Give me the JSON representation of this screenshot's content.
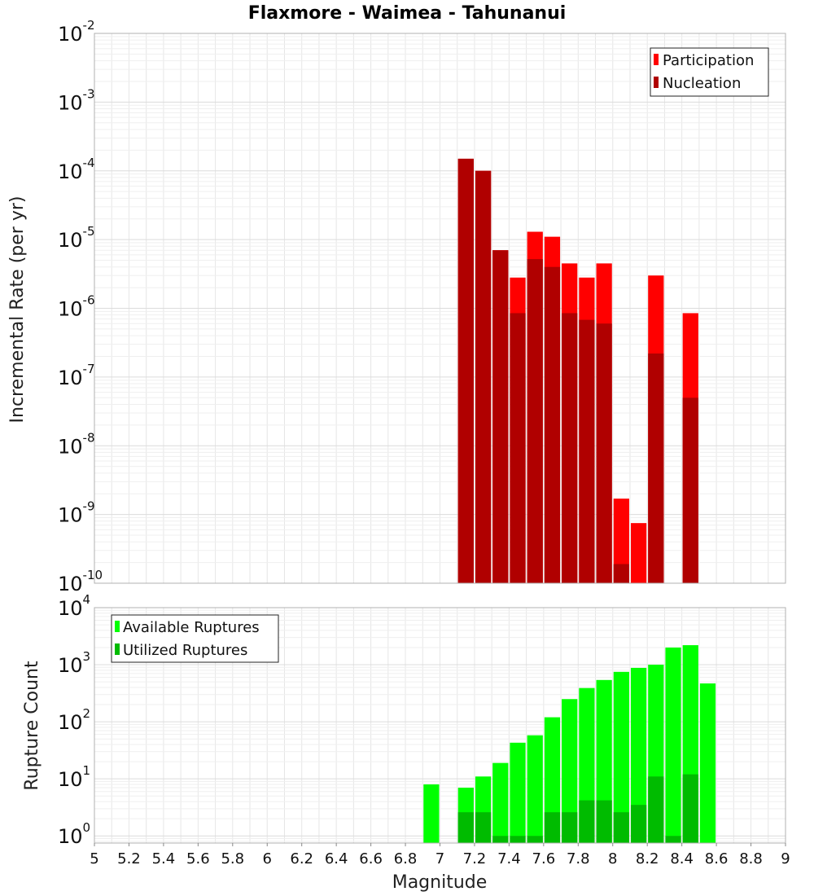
{
  "chart_data": [
    {
      "type": "bar",
      "title": "Flaxmore - Waimea - Tahunanui",
      "xlabel": "Magnitude",
      "ylabel": "Incremental Rate (per yr)",
      "yscale": "log",
      "ylim": [
        1e-10,
        0.01
      ],
      "xlim": [
        5,
        9
      ],
      "grid": true,
      "legend_position": "top-right",
      "colors": {
        "Participation": "#ff0000",
        "Nucleation": "#b00000"
      },
      "x": [
        7.15,
        7.25,
        7.35,
        7.45,
        7.55,
        7.65,
        7.75,
        7.85,
        7.95,
        8.05,
        8.15,
        8.25,
        8.45
      ],
      "series": [
        {
          "name": "Participation",
          "values": [
            0.00015,
            0.0001,
            7e-06,
            2.8e-06,
            1.3e-05,
            1.1e-05,
            4.5e-06,
            2.8e-06,
            4.5e-06,
            1.7e-09,
            7.5e-10,
            3e-06,
            8.5e-07
          ]
        },
        {
          "name": "Nucleation",
          "values": [
            0.00015,
            0.0001,
            7e-06,
            8.5e-07,
            5.2e-06,
            4e-06,
            8.5e-07,
            6.8e-07,
            6e-07,
            1.9e-10,
            null,
            2.2e-07,
            5e-08
          ]
        }
      ]
    },
    {
      "type": "bar",
      "title": "",
      "xlabel": "Magnitude",
      "ylabel": "Rupture Count",
      "yscale": "log",
      "ylim": [
        0.75,
        10000
      ],
      "xlim": [
        5,
        9
      ],
      "grid": true,
      "legend_position": "top-left",
      "colors": {
        "Available Ruptures": "#00ff00",
        "Utilized Ruptures": "#00bb00"
      },
      "x": [
        6.95,
        7.15,
        7.25,
        7.35,
        7.45,
        7.55,
        7.65,
        7.75,
        7.85,
        7.95,
        8.05,
        8.15,
        8.25,
        8.35,
        8.45,
        8.55
      ],
      "series": [
        {
          "name": "Available Ruptures",
          "values": [
            8,
            7,
            11,
            19,
            43,
            58,
            120,
            250,
            390,
            540,
            750,
            880,
            1000,
            2000,
            2200,
            470
          ]
        },
        {
          "name": "Utilized Ruptures",
          "values": [
            null,
            2.6,
            2.6,
            1,
            1,
            1,
            2.6,
            2.6,
            4.2,
            4.2,
            2.6,
            3.5,
            11,
            1,
            12,
            null
          ]
        }
      ]
    }
  ],
  "x_ticks": [
    "5",
    "5.2",
    "5.4",
    "5.6",
    "5.8",
    "6",
    "6.2",
    "6.4",
    "6.6",
    "6.8",
    "7",
    "7.2",
    "7.4",
    "7.6",
    "7.8",
    "8",
    "8.2",
    "8.4",
    "8.6",
    "8.8",
    "9"
  ],
  "top_y_ticks": [
    {
      "base": "10",
      "exp": "-2",
      "value": 0.01
    },
    {
      "base": "10",
      "exp": "-3",
      "value": 0.001
    },
    {
      "base": "10",
      "exp": "-4",
      "value": 0.0001
    },
    {
      "base": "10",
      "exp": "-5",
      "value": 1e-05
    },
    {
      "base": "10",
      "exp": "-6",
      "value": 1e-06
    },
    {
      "base": "10",
      "exp": "-7",
      "value": 1e-07
    },
    {
      "base": "10",
      "exp": "-8",
      "value": 1e-08
    },
    {
      "base": "10",
      "exp": "-9",
      "value": 1e-09
    },
    {
      "base": "10",
      "exp": "-10",
      "value": 1e-10
    }
  ],
  "bottom_y_ticks": [
    {
      "base": "10",
      "exp": "4",
      "value": 10000
    },
    {
      "base": "10",
      "exp": "3",
      "value": 1000
    },
    {
      "base": "10",
      "exp": "2",
      "value": 100
    },
    {
      "base": "10",
      "exp": "1",
      "value": 10
    },
    {
      "base": "10",
      "exp": "0",
      "value": 1
    }
  ]
}
